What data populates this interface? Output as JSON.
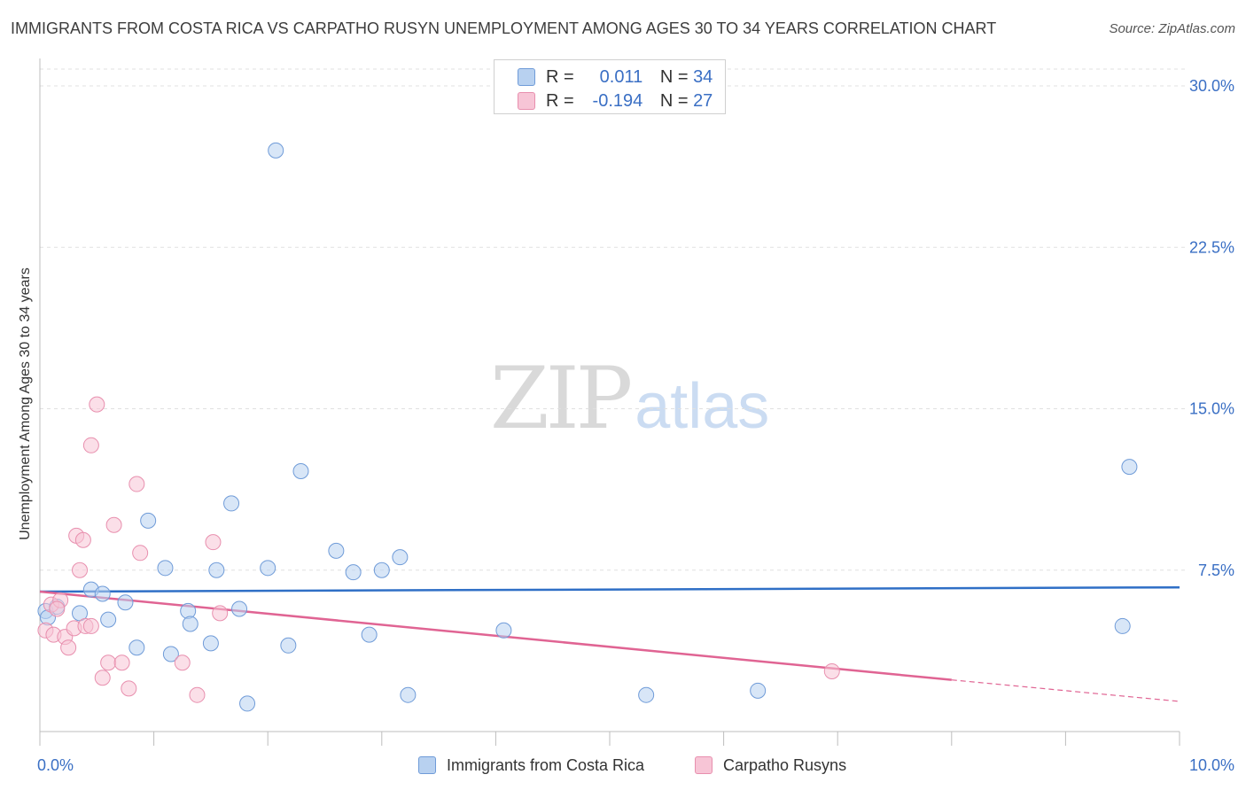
{
  "header": {
    "title": "IMMIGRANTS FROM COSTA RICA VS CARPATHO RUSYN UNEMPLOYMENT AMONG AGES 30 TO 34 YEARS CORRELATION CHART",
    "source": "Source: ZipAtlas.com"
  },
  "watermark": {
    "zip": "ZIP",
    "atlas": "atlas"
  },
  "legend_top": {
    "rows": [
      {
        "r_label": "R =",
        "r_value": "0.011",
        "n_label": "N =",
        "n_value": "34"
      },
      {
        "r_label": "R =",
        "r_value": "-0.194",
        "n_label": "N =",
        "n_value": "27"
      }
    ]
  },
  "legend_bottom": {
    "items": [
      {
        "label": "Immigrants from Costa Rica"
      },
      {
        "label": "Carpatho Rusyns"
      }
    ]
  },
  "colors": {
    "blue_fill": "#b8d1f0",
    "blue_stroke": "#6f9bd8",
    "blue_line": "#2f6fc6",
    "pink_fill": "#f7c5d6",
    "pink_stroke": "#e88fae",
    "pink_line": "#e06493",
    "tick_label": "#3a6fc4",
    "grid": "#e0e0e0"
  },
  "chart_data": {
    "type": "scatter",
    "title": "IMMIGRANTS FROM COSTA RICA VS CARPATHO RUSYN UNEMPLOYMENT AMONG AGES 30 TO 34 YEARS CORRELATION CHART",
    "xlabel": "",
    "ylabel": "Unemployment Among Ages 30 to 34 years",
    "xlim": [
      0,
      10
    ],
    "ylim": [
      0,
      30
    ],
    "x_tick_labels": [
      {
        "value": 0,
        "label": "0.0%"
      },
      {
        "value": 10,
        "label": "10.0%"
      }
    ],
    "y_tick_labels": [
      {
        "value": 7.5,
        "label": "7.5%"
      },
      {
        "value": 15,
        "label": "15.0%"
      },
      {
        "value": 22.5,
        "label": "22.5%"
      },
      {
        "value": 30,
        "label": "30.0%"
      }
    ],
    "series": [
      {
        "name": "Immigrants from Costa Rica",
        "color": "blue",
        "r": 0.011,
        "n": 34,
        "points": [
          [
            0.05,
            5.6
          ],
          [
            0.15,
            5.8
          ],
          [
            0.35,
            5.5
          ],
          [
            0.45,
            6.6
          ],
          [
            0.55,
            6.4
          ],
          [
            0.6,
            5.2
          ],
          [
            0.75,
            6.0
          ],
          [
            0.85,
            3.9
          ],
          [
            0.95,
            9.8
          ],
          [
            1.1,
            7.6
          ],
          [
            1.15,
            3.6
          ],
          [
            1.3,
            5.6
          ],
          [
            1.32,
            5.0
          ],
          [
            1.5,
            4.1
          ],
          [
            1.55,
            7.5
          ],
          [
            1.68,
            10.6
          ],
          [
            1.75,
            5.7
          ],
          [
            1.82,
            1.3
          ],
          [
            2.0,
            7.6
          ],
          [
            2.07,
            27.0
          ],
          [
            2.18,
            4.0
          ],
          [
            2.29,
            12.1
          ],
          [
            2.6,
            8.4
          ],
          [
            2.75,
            7.4
          ],
          [
            2.89,
            4.5
          ],
          [
            3.0,
            7.5
          ],
          [
            3.16,
            8.1
          ],
          [
            3.23,
            1.7
          ],
          [
            4.07,
            4.7
          ],
          [
            5.32,
            1.7
          ],
          [
            6.3,
            1.9
          ],
          [
            9.5,
            4.9
          ],
          [
            9.56,
            12.3
          ],
          [
            0.07,
            5.3
          ]
        ],
        "trend": {
          "x": [
            0,
            10
          ],
          "y": [
            6.5,
            6.7
          ]
        }
      },
      {
        "name": "Carpatho Rusyns",
        "color": "pink",
        "r": -0.194,
        "n": 27,
        "points": [
          [
            0.05,
            4.7
          ],
          [
            0.1,
            5.9
          ],
          [
            0.12,
            4.5
          ],
          [
            0.18,
            6.1
          ],
          [
            0.22,
            4.4
          ],
          [
            0.25,
            3.9
          ],
          [
            0.3,
            4.8
          ],
          [
            0.32,
            9.1
          ],
          [
            0.35,
            7.5
          ],
          [
            0.38,
            8.9
          ],
          [
            0.4,
            4.9
          ],
          [
            0.45,
            4.9
          ],
          [
            0.5,
            15.2
          ],
          [
            0.45,
            13.3
          ],
          [
            0.55,
            2.5
          ],
          [
            0.6,
            3.2
          ],
          [
            0.65,
            9.6
          ],
          [
            0.72,
            3.2
          ],
          [
            0.78,
            2.0
          ],
          [
            0.85,
            11.5
          ],
          [
            0.88,
            8.3
          ],
          [
            1.25,
            3.2
          ],
          [
            1.38,
            1.7
          ],
          [
            1.52,
            8.8
          ],
          [
            1.58,
            5.5
          ],
          [
            6.95,
            2.8
          ],
          [
            0.15,
            5.7
          ]
        ],
        "trend": {
          "x": [
            0,
            8
          ],
          "y": [
            6.5,
            2.4
          ]
        },
        "trend_extension": {
          "x": [
            8,
            10
          ],
          "y": [
            2.4,
            1.4
          ]
        }
      }
    ],
    "legend": {
      "position": "top-center"
    },
    "grid": true
  }
}
